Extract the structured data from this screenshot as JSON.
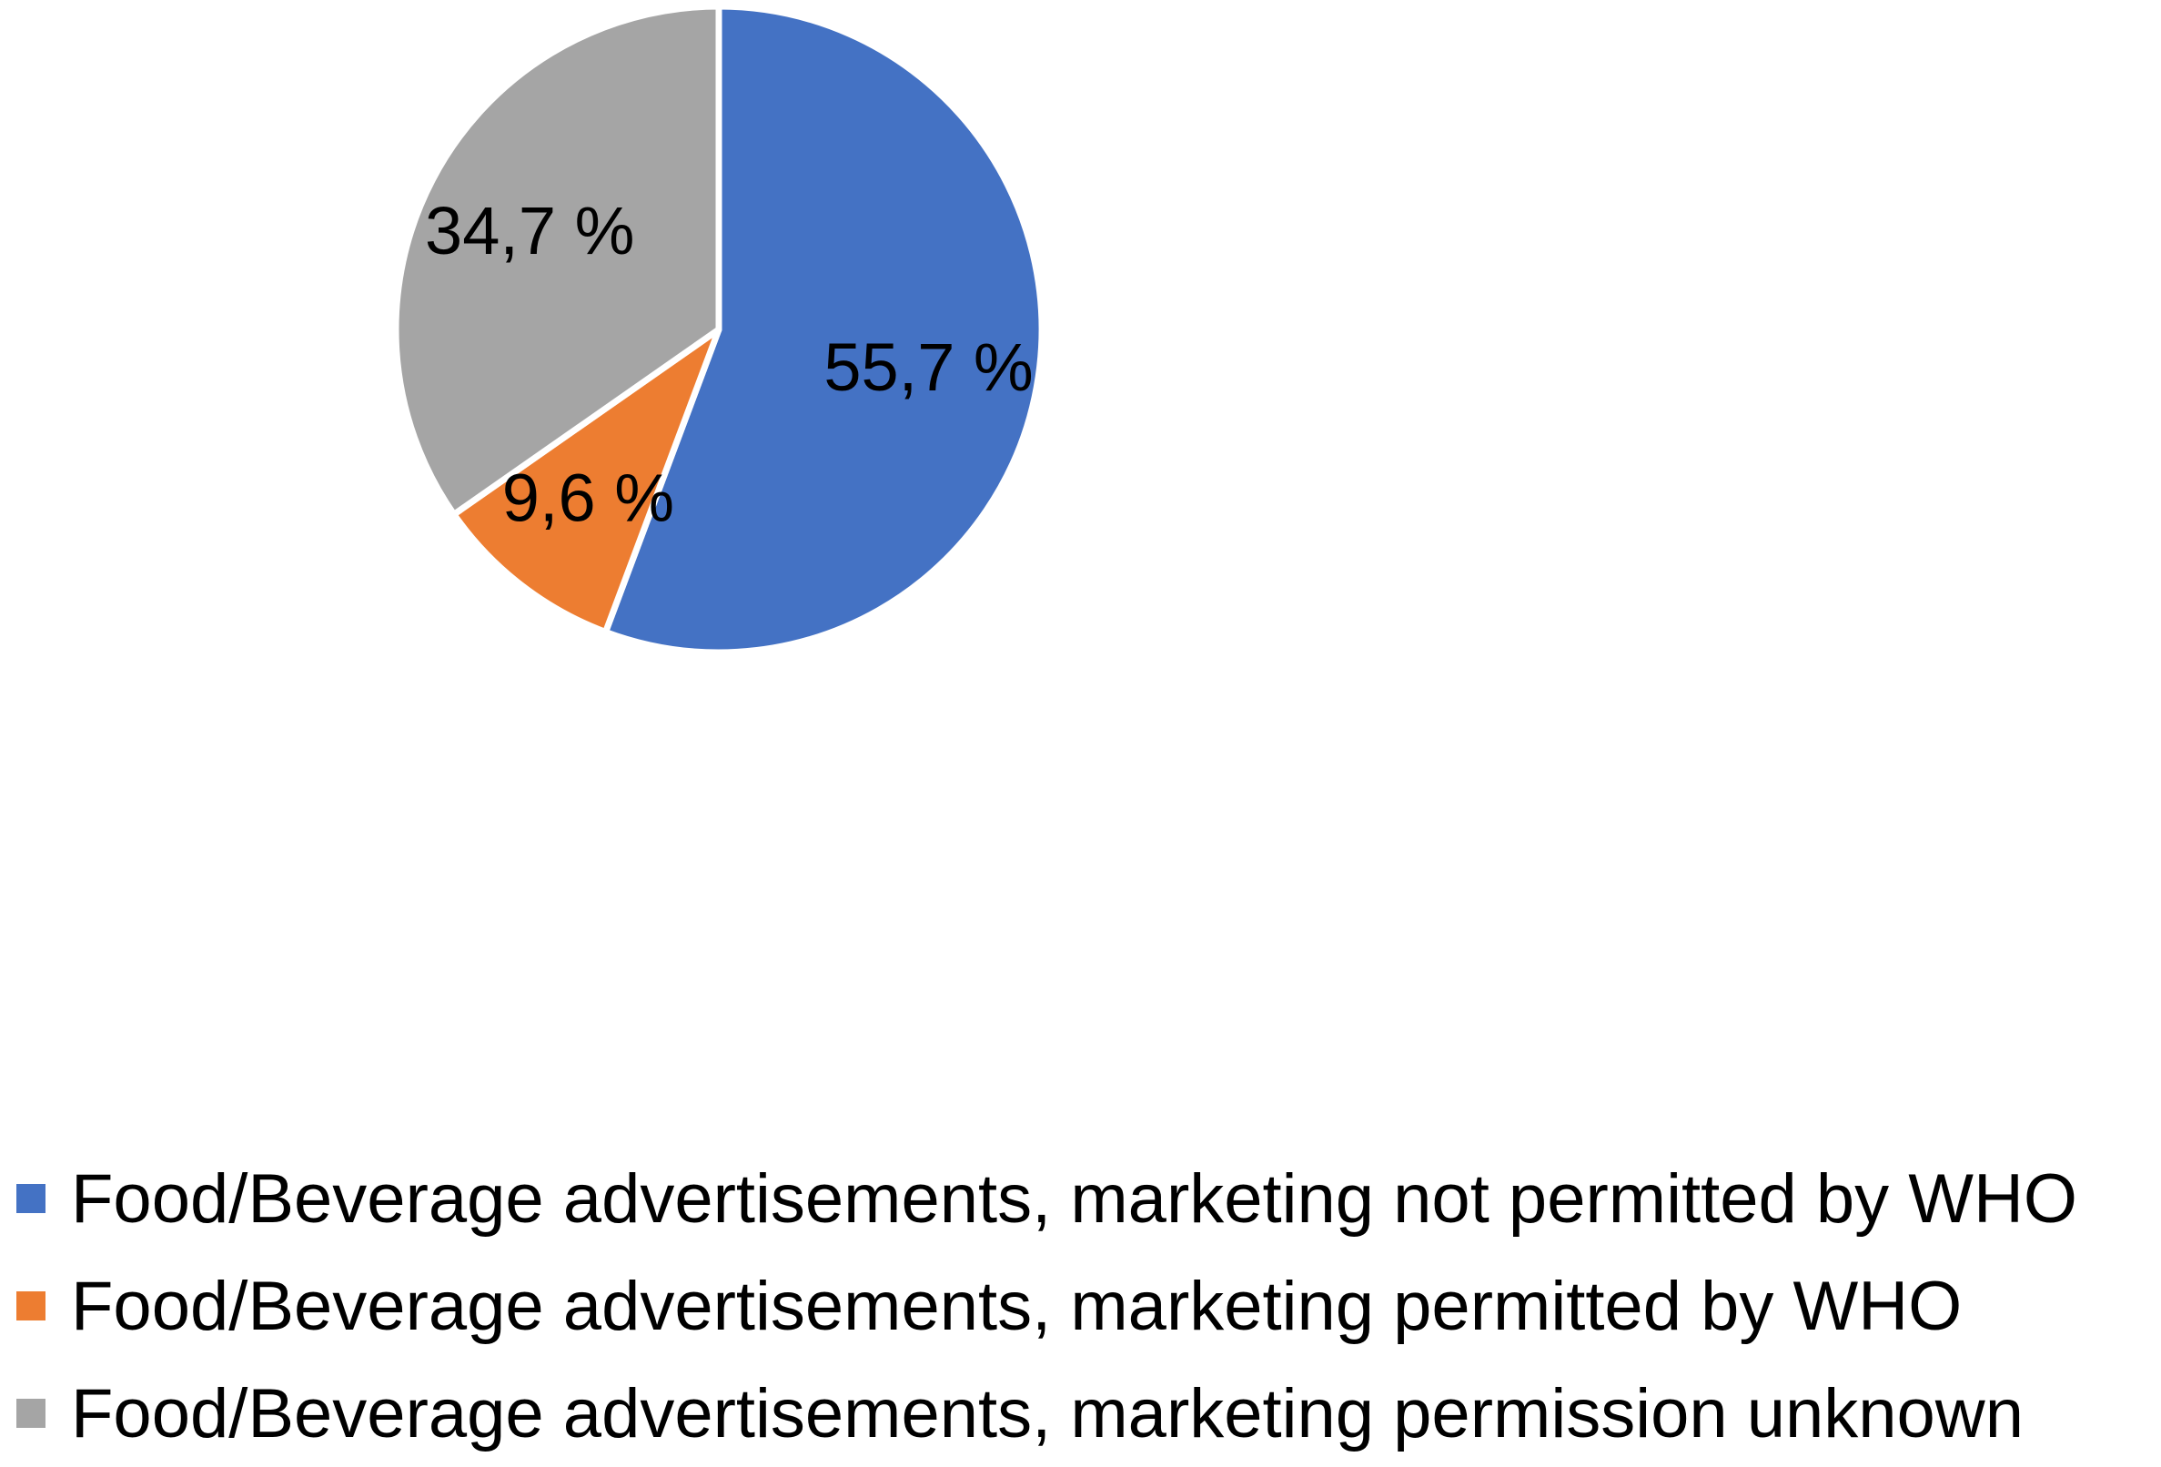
{
  "chart_data": {
    "type": "pie",
    "title": "",
    "legend_position": "bottom",
    "start_angle": "12 o'clock",
    "direction": "clockwise",
    "slices": [
      {
        "name": "Food/Beverage advertisements, marketing not permitted by WHO",
        "value": 55.7,
        "label": "55,7 %",
        "color": "#4472C4"
      },
      {
        "name": "Food/Beverage advertisements, marketing permitted by WHO",
        "value": 9.6,
        "label": "9,6 %",
        "color": "#ED7D31"
      },
      {
        "name": "Food/Beverage advertisements, marketing permission unknown",
        "value": 34.7,
        "label": "34,7 %",
        "color": "#A5A5A5"
      }
    ]
  }
}
